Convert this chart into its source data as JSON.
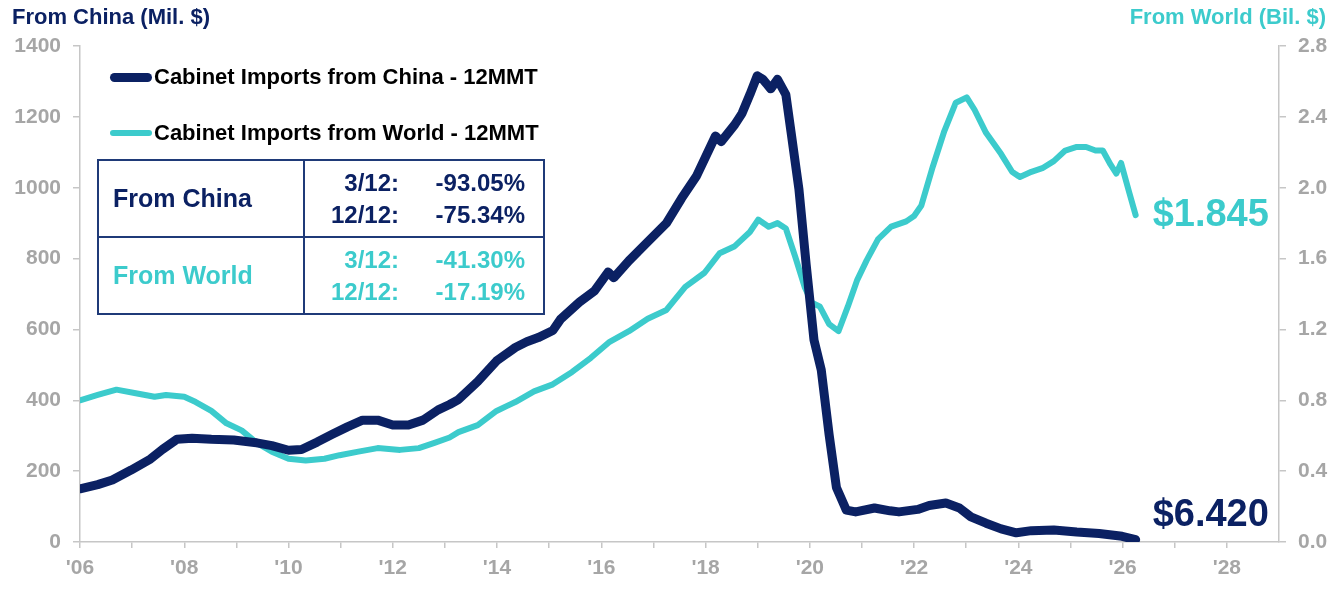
{
  "chart_data": {
    "type": "line",
    "ylabel": "From China (Mil. $)",
    "y2label": "From World (Bil. $)",
    "xlim": [
      2006,
      2029
    ],
    "xticks": [
      {
        "value": 2006,
        "label": "'06"
      },
      {
        "value": 2007,
        "label": null
      },
      {
        "value": 2008,
        "label": "'08"
      },
      {
        "value": 2009,
        "label": null
      },
      {
        "value": 2010,
        "label": "'10"
      },
      {
        "value": 2011,
        "label": null
      },
      {
        "value": 2012,
        "label": "'12"
      },
      {
        "value": 2013,
        "label": null
      },
      {
        "value": 2014,
        "label": "'14"
      },
      {
        "value": 2015,
        "label": null
      },
      {
        "value": 2016,
        "label": "'16"
      },
      {
        "value": 2017,
        "label": null
      },
      {
        "value": 2018,
        "label": "'18"
      },
      {
        "value": 2019,
        "label": null
      },
      {
        "value": 2020,
        "label": "'20"
      },
      {
        "value": 2021,
        "label": null
      },
      {
        "value": 2022,
        "label": "'22"
      },
      {
        "value": 2023,
        "label": null
      },
      {
        "value": 2024,
        "label": "'24"
      },
      {
        "value": 2025,
        "label": null
      },
      {
        "value": 2026,
        "label": "'26"
      },
      {
        "value": 2027,
        "label": null
      },
      {
        "value": 2028,
        "label": "'28"
      }
    ],
    "ylim": [
      0,
      1400
    ],
    "yticks": [
      0,
      200,
      400,
      600,
      800,
      1000,
      1200,
      1400
    ],
    "y2lim": [
      0,
      2.8
    ],
    "y2ticks": [
      {
        "value": 0,
        "label": "0.0"
      },
      0.4,
      0.8,
      1.2,
      1.6,
      {
        "value": 2,
        "label": "2.0"
      },
      2.4,
      2.8
    ],
    "legend": "top left",
    "series": [
      {
        "name": "Cabinet Imports from China - 12MMT",
        "color": "#0b2163",
        "x": [
          2006.0,
          2006.34,
          2006.62,
          2006.98,
          2007.35,
          2007.58,
          2007.86,
          2008.15,
          2008.52,
          2008.95,
          2009.39,
          2009.68,
          2010.0,
          2010.25,
          2010.55,
          2010.84,
          2011.13,
          2011.42,
          2011.71,
          2012.0,
          2012.3,
          2012.58,
          2012.87,
          2013.09,
          2013.26,
          2013.63,
          2013.99,
          2014.35,
          2014.57,
          2014.79,
          2015.07,
          2015.22,
          2015.58,
          2015.87,
          2016.13,
          2016.24,
          2016.53,
          2016.89,
          2017.25,
          2017.54,
          2017.83,
          2018.19,
          2018.3,
          2018.56,
          2018.7,
          2018.85,
          2018.99,
          2019.1,
          2019.25,
          2019.38,
          2019.54,
          2019.64,
          2019.79,
          2019.93,
          2020.08,
          2020.22,
          2020.37,
          2020.51,
          2020.7,
          2020.88,
          2021.24,
          2021.54,
          2021.71,
          2022.07,
          2022.29,
          2022.61,
          2022.87,
          2023.09,
          2023.38,
          2023.67,
          2023.96,
          2024.25,
          2024.68,
          2025.12,
          2025.55,
          2025.99,
          2026.25
        ],
        "values": [
          150,
          162,
          175,
          203,
          234,
          261,
          290,
          293,
          290,
          288,
          280,
          272,
          259,
          261,
          282,
          304,
          325,
          344,
          344,
          330,
          330,
          344,
          373,
          388,
          402,
          453,
          511,
          549,
          565,
          577,
          597,
          629,
          677,
          709,
          762,
          746,
          794,
          847,
          900,
          970,
          1034,
          1146,
          1130,
          1178,
          1210,
          1263,
          1316,
          1306,
          1279,
          1306,
          1263,
          1157,
          997,
          783,
          570,
          485,
          303,
          154,
          90,
          85,
          96,
          88,
          85,
          92,
          103,
          110,
          96,
          71,
          53,
          37,
          26,
          32,
          34,
          28,
          24,
          16,
          6.42
        ],
        "value_labels": [
          null,
          null,
          null,
          null,
          null,
          null,
          null,
          null,
          null,
          null,
          null,
          null,
          null,
          null,
          null,
          null,
          null,
          null,
          null,
          null,
          null,
          null,
          null,
          null,
          null,
          null,
          null,
          null,
          null,
          null,
          null,
          null,
          null,
          null,
          null,
          null,
          null,
          null,
          null,
          null,
          null,
          null,
          null,
          null,
          null,
          null,
          null,
          null,
          null,
          null,
          null,
          null,
          null,
          null,
          null,
          null,
          null,
          null,
          null,
          null,
          null,
          null,
          null,
          null,
          null,
          null,
          null,
          null,
          null,
          null,
          null,
          null,
          null,
          null,
          null,
          null,
          "$6.420"
        ]
      },
      {
        "name": "Cabinet Imports from World - 12MMT",
        "color": "#3ccbcc",
        "axis": "y2",
        "x": [
          2006.0,
          2006.34,
          2006.7,
          2007.07,
          2007.43,
          2007.65,
          2008.0,
          2008.22,
          2008.52,
          2008.81,
          2009.1,
          2009.39,
          2009.68,
          2010.0,
          2010.33,
          2010.69,
          2010.98,
          2011.34,
          2011.71,
          2012.14,
          2012.5,
          2012.8,
          2013.09,
          2013.26,
          2013.63,
          2013.99,
          2014.35,
          2014.71,
          2015.07,
          2015.44,
          2015.8,
          2016.16,
          2016.53,
          2016.89,
          2017.25,
          2017.61,
          2017.98,
          2018.27,
          2018.56,
          2018.85,
          2019.01,
          2019.21,
          2019.38,
          2019.54,
          2019.72,
          2019.9,
          2020.04,
          2020.19,
          2020.37,
          2020.55,
          2020.73,
          2020.91,
          2021.09,
          2021.31,
          2021.56,
          2021.85,
          2022.0,
          2022.14,
          2022.36,
          2022.58,
          2022.8,
          2023.01,
          2023.16,
          2023.38,
          2023.67,
          2023.88,
          2024.03,
          2024.25,
          2024.46,
          2024.68,
          2024.9,
          2025.12,
          2025.3,
          2025.48,
          2025.62,
          2025.77,
          2025.88,
          2025.97,
          2026.13,
          2026.25
        ],
        "values": [
          0.8,
          0.83,
          0.86,
          0.84,
          0.82,
          0.83,
          0.82,
          0.79,
          0.74,
          0.67,
          0.63,
          0.56,
          0.51,
          0.47,
          0.46,
          0.47,
          0.49,
          0.51,
          0.53,
          0.52,
          0.53,
          0.56,
          0.59,
          0.62,
          0.66,
          0.74,
          0.79,
          0.85,
          0.89,
          0.96,
          1.04,
          1.13,
          1.19,
          1.26,
          1.31,
          1.44,
          1.52,
          1.63,
          1.67,
          1.75,
          1.82,
          1.78,
          1.8,
          1.77,
          1.61,
          1.44,
          1.35,
          1.33,
          1.23,
          1.19,
          1.33,
          1.48,
          1.59,
          1.71,
          1.78,
          1.81,
          1.84,
          1.9,
          2.12,
          2.32,
          2.48,
          2.51,
          2.44,
          2.31,
          2.19,
          2.09,
          2.06,
          2.09,
          2.11,
          2.15,
          2.21,
          2.23,
          2.23,
          2.21,
          2.21,
          2.13,
          2.08,
          2.14,
          1.97,
          1.845
        ],
        "value_labels": [
          null,
          null,
          null,
          null,
          null,
          null,
          null,
          null,
          null,
          null,
          null,
          null,
          null,
          null,
          null,
          null,
          null,
          null,
          null,
          null,
          null,
          null,
          null,
          null,
          null,
          null,
          null,
          null,
          null,
          null,
          null,
          null,
          null,
          null,
          null,
          null,
          null,
          null,
          null,
          null,
          null,
          null,
          null,
          null,
          null,
          null,
          null,
          null,
          null,
          null,
          null,
          null,
          null,
          null,
          null,
          null,
          null,
          null,
          null,
          null,
          null,
          null,
          null,
          null,
          null,
          null,
          null,
          null,
          null,
          null,
          null,
          null,
          null,
          null,
          null,
          null,
          null,
          null,
          null,
          "$1.845"
        ]
      }
    ],
    "annotations": [
      "From China",
      "3/12:",
      "-93.05%",
      "12/12:",
      "-75.34%",
      "From World",
      "3/12:",
      "-41.30%",
      "12/12:",
      "-17.19%"
    ]
  }
}
